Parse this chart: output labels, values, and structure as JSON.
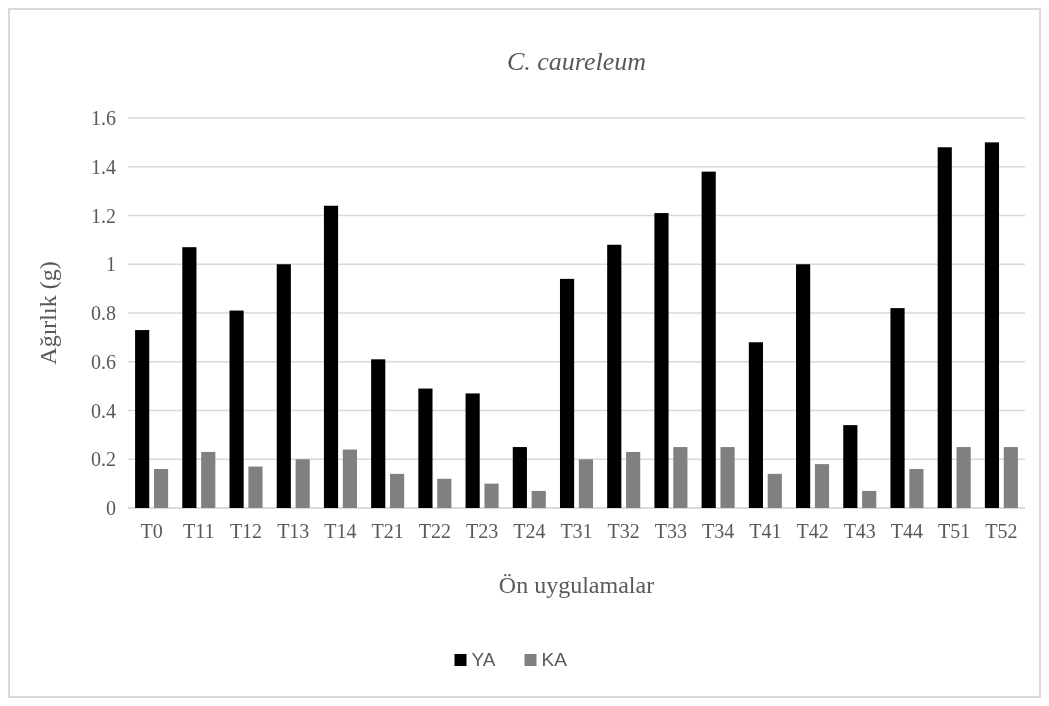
{
  "chart_data": {
    "type": "bar",
    "title": "C. caureleum",
    "xlabel": "Ön uygulamalar",
    "ylabel": "Ağırlık (g)",
    "categories": [
      "T0",
      "T11",
      "T12",
      "T13",
      "T14",
      "T21",
      "T22",
      "T23",
      "T24",
      "T31",
      "T32",
      "T33",
      "T34",
      "T41",
      "T42",
      "T43",
      "T44",
      "T51",
      "T52"
    ],
    "series": [
      {
        "name": "YA",
        "color": "#000000",
        "values": [
          0.73,
          1.07,
          0.81,
          1.0,
          1.24,
          0.61,
          0.49,
          0.47,
          0.25,
          0.94,
          1.08,
          1.21,
          1.38,
          0.68,
          1.0,
          0.34,
          0.82,
          1.48,
          1.5
        ]
      },
      {
        "name": "KA",
        "color": "#808080",
        "values": [
          0.16,
          0.23,
          0.17,
          0.2,
          0.24,
          0.14,
          0.12,
          0.1,
          0.07,
          0.2,
          0.23,
          0.25,
          0.25,
          0.14,
          0.18,
          0.07,
          0.16,
          0.25,
          0.25
        ]
      }
    ],
    "ylim": [
      0,
      1.6
    ],
    "yticks": [
      0,
      0.2,
      0.4,
      0.6,
      0.8,
      1,
      1.2,
      1.4,
      1.6
    ],
    "grid": "y",
    "legend": "bottom"
  }
}
